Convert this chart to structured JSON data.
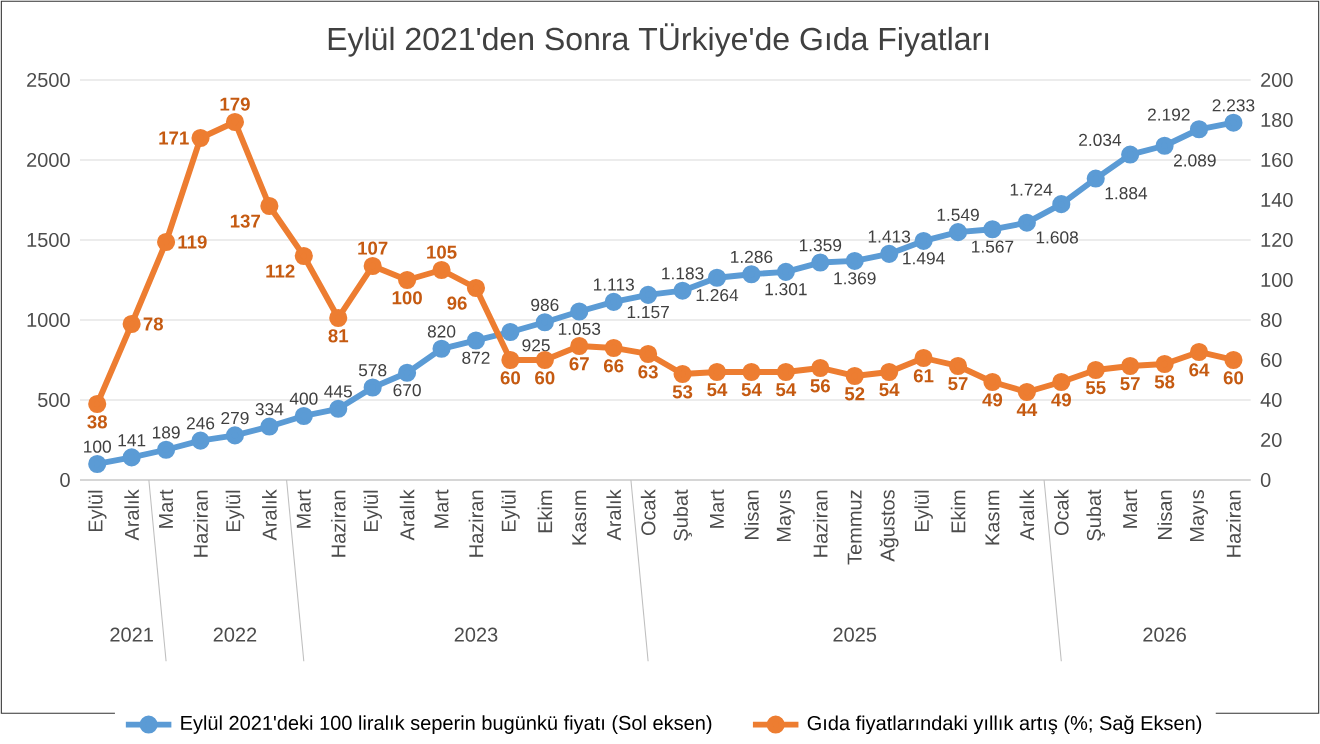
{
  "chart_data": {
    "type": "line",
    "title": "Eylül 2021'den Sonra TÜrkiye'de Gıda Fiyatları",
    "categories": [
      "Eylül",
      "Aralık",
      "Mart",
      "Haziran",
      "Eylül",
      "Aralık",
      "Mart",
      "Haziran",
      "Eylül",
      "Aralık",
      "Mart",
      "Haziran",
      "Eylül",
      "Ekim",
      "Kasım",
      "Aralık",
      "Ocak",
      "Şubat",
      "Mart",
      "Nisan",
      "Mayıs",
      "Haziran",
      "Temmuz",
      "Ağustos",
      "Eylül",
      "Ekim",
      "Kasım",
      "Aralık",
      "Ocak",
      "Şubat",
      "Mart",
      "Nisan",
      "Mayıs",
      "Haziran"
    ],
    "series": [
      {
        "name": "Eylül 2021'deki 100 liralık seperin bugünkü fiyatı (Sol eksen)",
        "color": "#5b9bd5",
        "values": [
          100,
          141,
          189,
          246,
          279,
          334,
          400,
          445,
          578,
          670,
          820,
          872,
          925,
          986,
          1053,
          1113,
          1157,
          1183,
          1264,
          1286,
          1301,
          1359,
          1369,
          1413,
          1494,
          1549,
          1567,
          1608,
          1724,
          1884,
          2034,
          2089,
          2192,
          2233
        ],
        "value_labels": [
          "100",
          "141",
          "189",
          "246",
          "279",
          "334",
          "400",
          "445",
          "578",
          "670",
          "820",
          "872",
          "925",
          "986",
          "1.053",
          "1.113",
          "1.157",
          "1.183",
          "1.264",
          "1.286",
          "1.301",
          "1.359",
          "1.369",
          "1.413",
          "1.494",
          "1.549",
          "1.567",
          "1.608",
          "1.724",
          "1.884",
          "2.034",
          "2.089",
          "2.192",
          "2.233"
        ]
      },
      {
        "name": "Gıda fiyatlarındaki yıllık artış (%; Sağ Eksen)",
        "color": "#ed7d31",
        "axis": "y2",
        "values": [
          38,
          78,
          119,
          171,
          179,
          137,
          112,
          81,
          107,
          100,
          105,
          96,
          60,
          60,
          67,
          66,
          63,
          53,
          54,
          54,
          54,
          56,
          52,
          54,
          61,
          57,
          49,
          44,
          49,
          55,
          57,
          58,
          64,
          60
        ],
        "value_labels": [
          "38",
          "78",
          "119",
          "171",
          "179",
          "137",
          "112",
          "81",
          "107",
          "100",
          "105",
          "96",
          "60",
          "60",
          "67",
          "66",
          "63",
          "53",
          "54",
          "54",
          "54",
          "56",
          "52",
          "54",
          "61",
          "57",
          "49",
          "44",
          "49",
          "55",
          "57",
          "58",
          "64",
          "60"
        ]
      }
    ],
    "ylim": [
      0,
      2500
    ],
    "yticks": [
      0,
      500,
      1000,
      1500,
      2000,
      2500
    ],
    "y2lim": [
      0,
      200
    ],
    "y2ticks": [
      0,
      20,
      40,
      60,
      80,
      100,
      120,
      140,
      160,
      180,
      200
    ],
    "annotations": [
      "2021",
      "2022",
      "2023",
      "2025",
      "2026"
    ],
    "grid": "y",
    "legend": "bottom",
    "marker": "circle",
    "line_style": "solid"
  }
}
